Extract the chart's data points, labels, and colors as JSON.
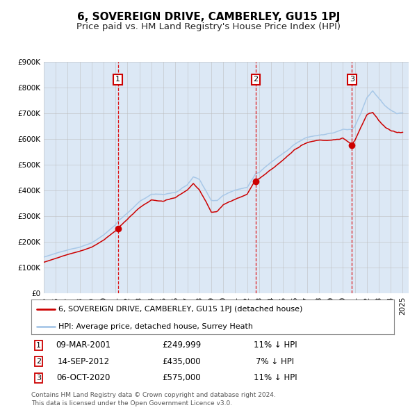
{
  "title": "6, SOVEREIGN DRIVE, CAMBERLEY, GU15 1PJ",
  "subtitle": "Price paid vs. HM Land Registry's House Price Index (HPI)",
  "ylim": [
    0,
    900000
  ],
  "yticks": [
    0,
    100000,
    200000,
    300000,
    400000,
    500000,
    600000,
    700000,
    800000,
    900000
  ],
  "ytick_labels": [
    "£0",
    "£100K",
    "£200K",
    "£300K",
    "£400K",
    "£500K",
    "£600K",
    "£700K",
    "£800K",
    "£900K"
  ],
  "hpi_color": "#a8c8e8",
  "price_color": "#cc0000",
  "bg_color": "#dce8f5",
  "grid_color": "#bbbbbb",
  "vline_color": "#dd0000",
  "marker_color": "#cc0000",
  "sale_dates": [
    2001.19,
    2012.71,
    2020.76
  ],
  "sale_prices": [
    249999,
    435000,
    575000
  ],
  "sale_labels": [
    "1",
    "2",
    "3"
  ],
  "legend_entries": [
    "6, SOVEREIGN DRIVE, CAMBERLEY, GU15 1PJ (detached house)",
    "HPI: Average price, detached house, Surrey Heath"
  ],
  "table_rows": [
    [
      "1",
      "09-MAR-2001",
      "£249,999",
      "11% ↓ HPI"
    ],
    [
      "2",
      "14-SEP-2012",
      "£435,000",
      "7% ↓ HPI"
    ],
    [
      "3",
      "06-OCT-2020",
      "£575,000",
      "11% ↓ HPI"
    ]
  ],
  "footnote": "Contains HM Land Registry data © Crown copyright and database right 2024.\nThis data is licensed under the Open Government Licence v3.0.",
  "title_fontsize": 11,
  "subtitle_fontsize": 9.5,
  "tick_fontsize": 7.5,
  "legend_fontsize": 8,
  "table_fontsize": 8.5,
  "footnote_fontsize": 6.5
}
